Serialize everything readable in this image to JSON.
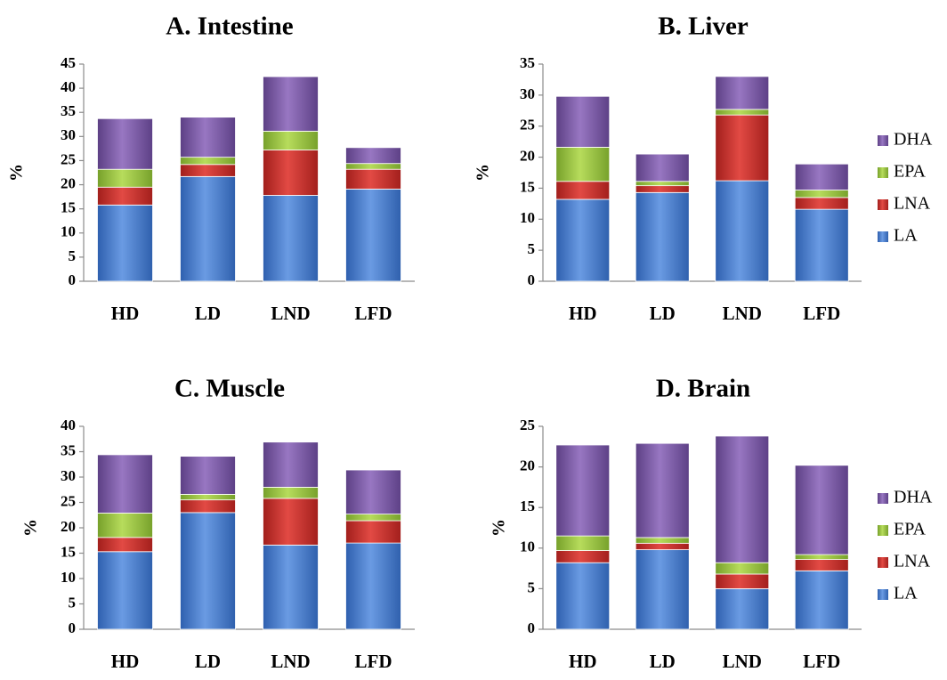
{
  "colors": {
    "LA": "#4a7fd0",
    "LNA": "#cc302c",
    "EPA": "#9ac33e",
    "DHA": "#7d5aa4"
  },
  "chart_data": [
    {
      "type": "bar",
      "stacked": true,
      "title": "A. Intestine",
      "ylabel": "%",
      "ylim": [
        0,
        45
      ],
      "yticks": [
        "0",
        "5",
        "10",
        "15",
        "20",
        "25",
        "30",
        "35",
        "40",
        "45"
      ],
      "categories": [
        "HD",
        "LD",
        "LND",
        "LFD"
      ],
      "series": [
        {
          "name": "LA",
          "values": [
            15.8,
            21.7,
            17.8,
            19.1
          ]
        },
        {
          "name": "LNA",
          "values": [
            3.7,
            2.5,
            9.4,
            4.1
          ]
        },
        {
          "name": "EPA",
          "values": [
            3.7,
            1.5,
            3.9,
            1.2
          ]
        },
        {
          "name": "DHA",
          "values": [
            10.5,
            8.3,
            11.3,
            3.3
          ]
        }
      ],
      "legend": false
    },
    {
      "type": "bar",
      "stacked": true,
      "title": "B. Liver",
      "ylabel": "%",
      "ylim": [
        0,
        35
      ],
      "yticks": [
        "0",
        "5",
        "10",
        "15",
        "20",
        "25",
        "30",
        "35"
      ],
      "categories": [
        "HD",
        "LD",
        "LND",
        "LFD"
      ],
      "series": [
        {
          "name": "LA",
          "values": [
            13.2,
            14.3,
            16.2,
            11.6
          ]
        },
        {
          "name": "LNA",
          "values": [
            2.9,
            1.1,
            10.6,
            1.9
          ]
        },
        {
          "name": "EPA",
          "values": [
            5.5,
            0.7,
            0.9,
            1.2
          ]
        },
        {
          "name": "DHA",
          "values": [
            8.2,
            4.4,
            5.3,
            4.2
          ]
        }
      ],
      "legend": true,
      "legend_position": "right"
    },
    {
      "type": "bar",
      "stacked": true,
      "title": "C. Muscle",
      "ylabel": "%",
      "ylim": [
        0,
        40
      ],
      "yticks": [
        "0",
        "5",
        "10",
        "15",
        "20",
        "25",
        "30",
        "35",
        "40"
      ],
      "categories": [
        "HD",
        "LD",
        "LND",
        "LFD"
      ],
      "series": [
        {
          "name": "LA",
          "values": [
            15.3,
            23.0,
            16.6,
            17.0
          ]
        },
        {
          "name": "LNA",
          "values": [
            2.8,
            2.5,
            9.2,
            4.4
          ]
        },
        {
          "name": "EPA",
          "values": [
            4.8,
            1.1,
            2.2,
            1.3
          ]
        },
        {
          "name": "DHA",
          "values": [
            11.5,
            7.5,
            8.9,
            8.7
          ]
        }
      ],
      "legend": false
    },
    {
      "type": "bar",
      "stacked": true,
      "title": "D. Brain",
      "ylabel": "%",
      "ylim": [
        0,
        25
      ],
      "yticks": [
        "0",
        "5",
        "10",
        "15",
        "20",
        "25"
      ],
      "categories": [
        "HD",
        "LD",
        "LND",
        "LFD"
      ],
      "series": [
        {
          "name": "LA",
          "values": [
            8.2,
            9.8,
            5.0,
            7.2
          ]
        },
        {
          "name": "LNA",
          "values": [
            1.5,
            0.8,
            1.8,
            1.4
          ]
        },
        {
          "name": "EPA",
          "values": [
            1.8,
            0.7,
            1.4,
            0.6
          ]
        },
        {
          "name": "DHA",
          "values": [
            11.2,
            11.6,
            15.6,
            11.0
          ]
        }
      ],
      "legend": true,
      "legend_position": "right"
    }
  ]
}
